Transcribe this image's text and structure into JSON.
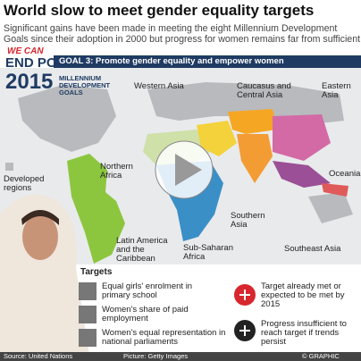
{
  "header": {
    "title": "World slow to meet gender equality targets",
    "subtitle": "Significant gains have been made in meeting the eight Millennium Development Goals since their adoption in 2000 but progress for women remains far from sufficient"
  },
  "logo": {
    "tag": "WE CAN",
    "line1": "END POVERTY",
    "year": "2015",
    "caption": "MILLENNIUM DEVELOPMENT GOALS"
  },
  "banner": "GOAL 3: Promote gender equality and empower women",
  "regions": [
    "Western Asia",
    "Caucasus and Central Asia",
    "Eastern Asia",
    "Northern Africa",
    "Oceania",
    "Southern Asia",
    "Latin America and the Caribbean",
    "Sub-Saharan Africa",
    "Southeast Asia",
    "Developed regions"
  ],
  "targets": {
    "title": "Targets",
    "items": [
      "Equal girls' enrolment in primary school",
      "Women's share of paid employment",
      "Women's equal representation in national parliaments"
    ]
  },
  "legend": [
    "Target already met or expected to be met by 2015",
    "Progress insufficient to reach target if trends persist"
  ],
  "footer": {
    "source": "Source: United Nations",
    "picture": "Picture: Getty Images",
    "credit": "© GRAPHIC NEWS"
  }
}
